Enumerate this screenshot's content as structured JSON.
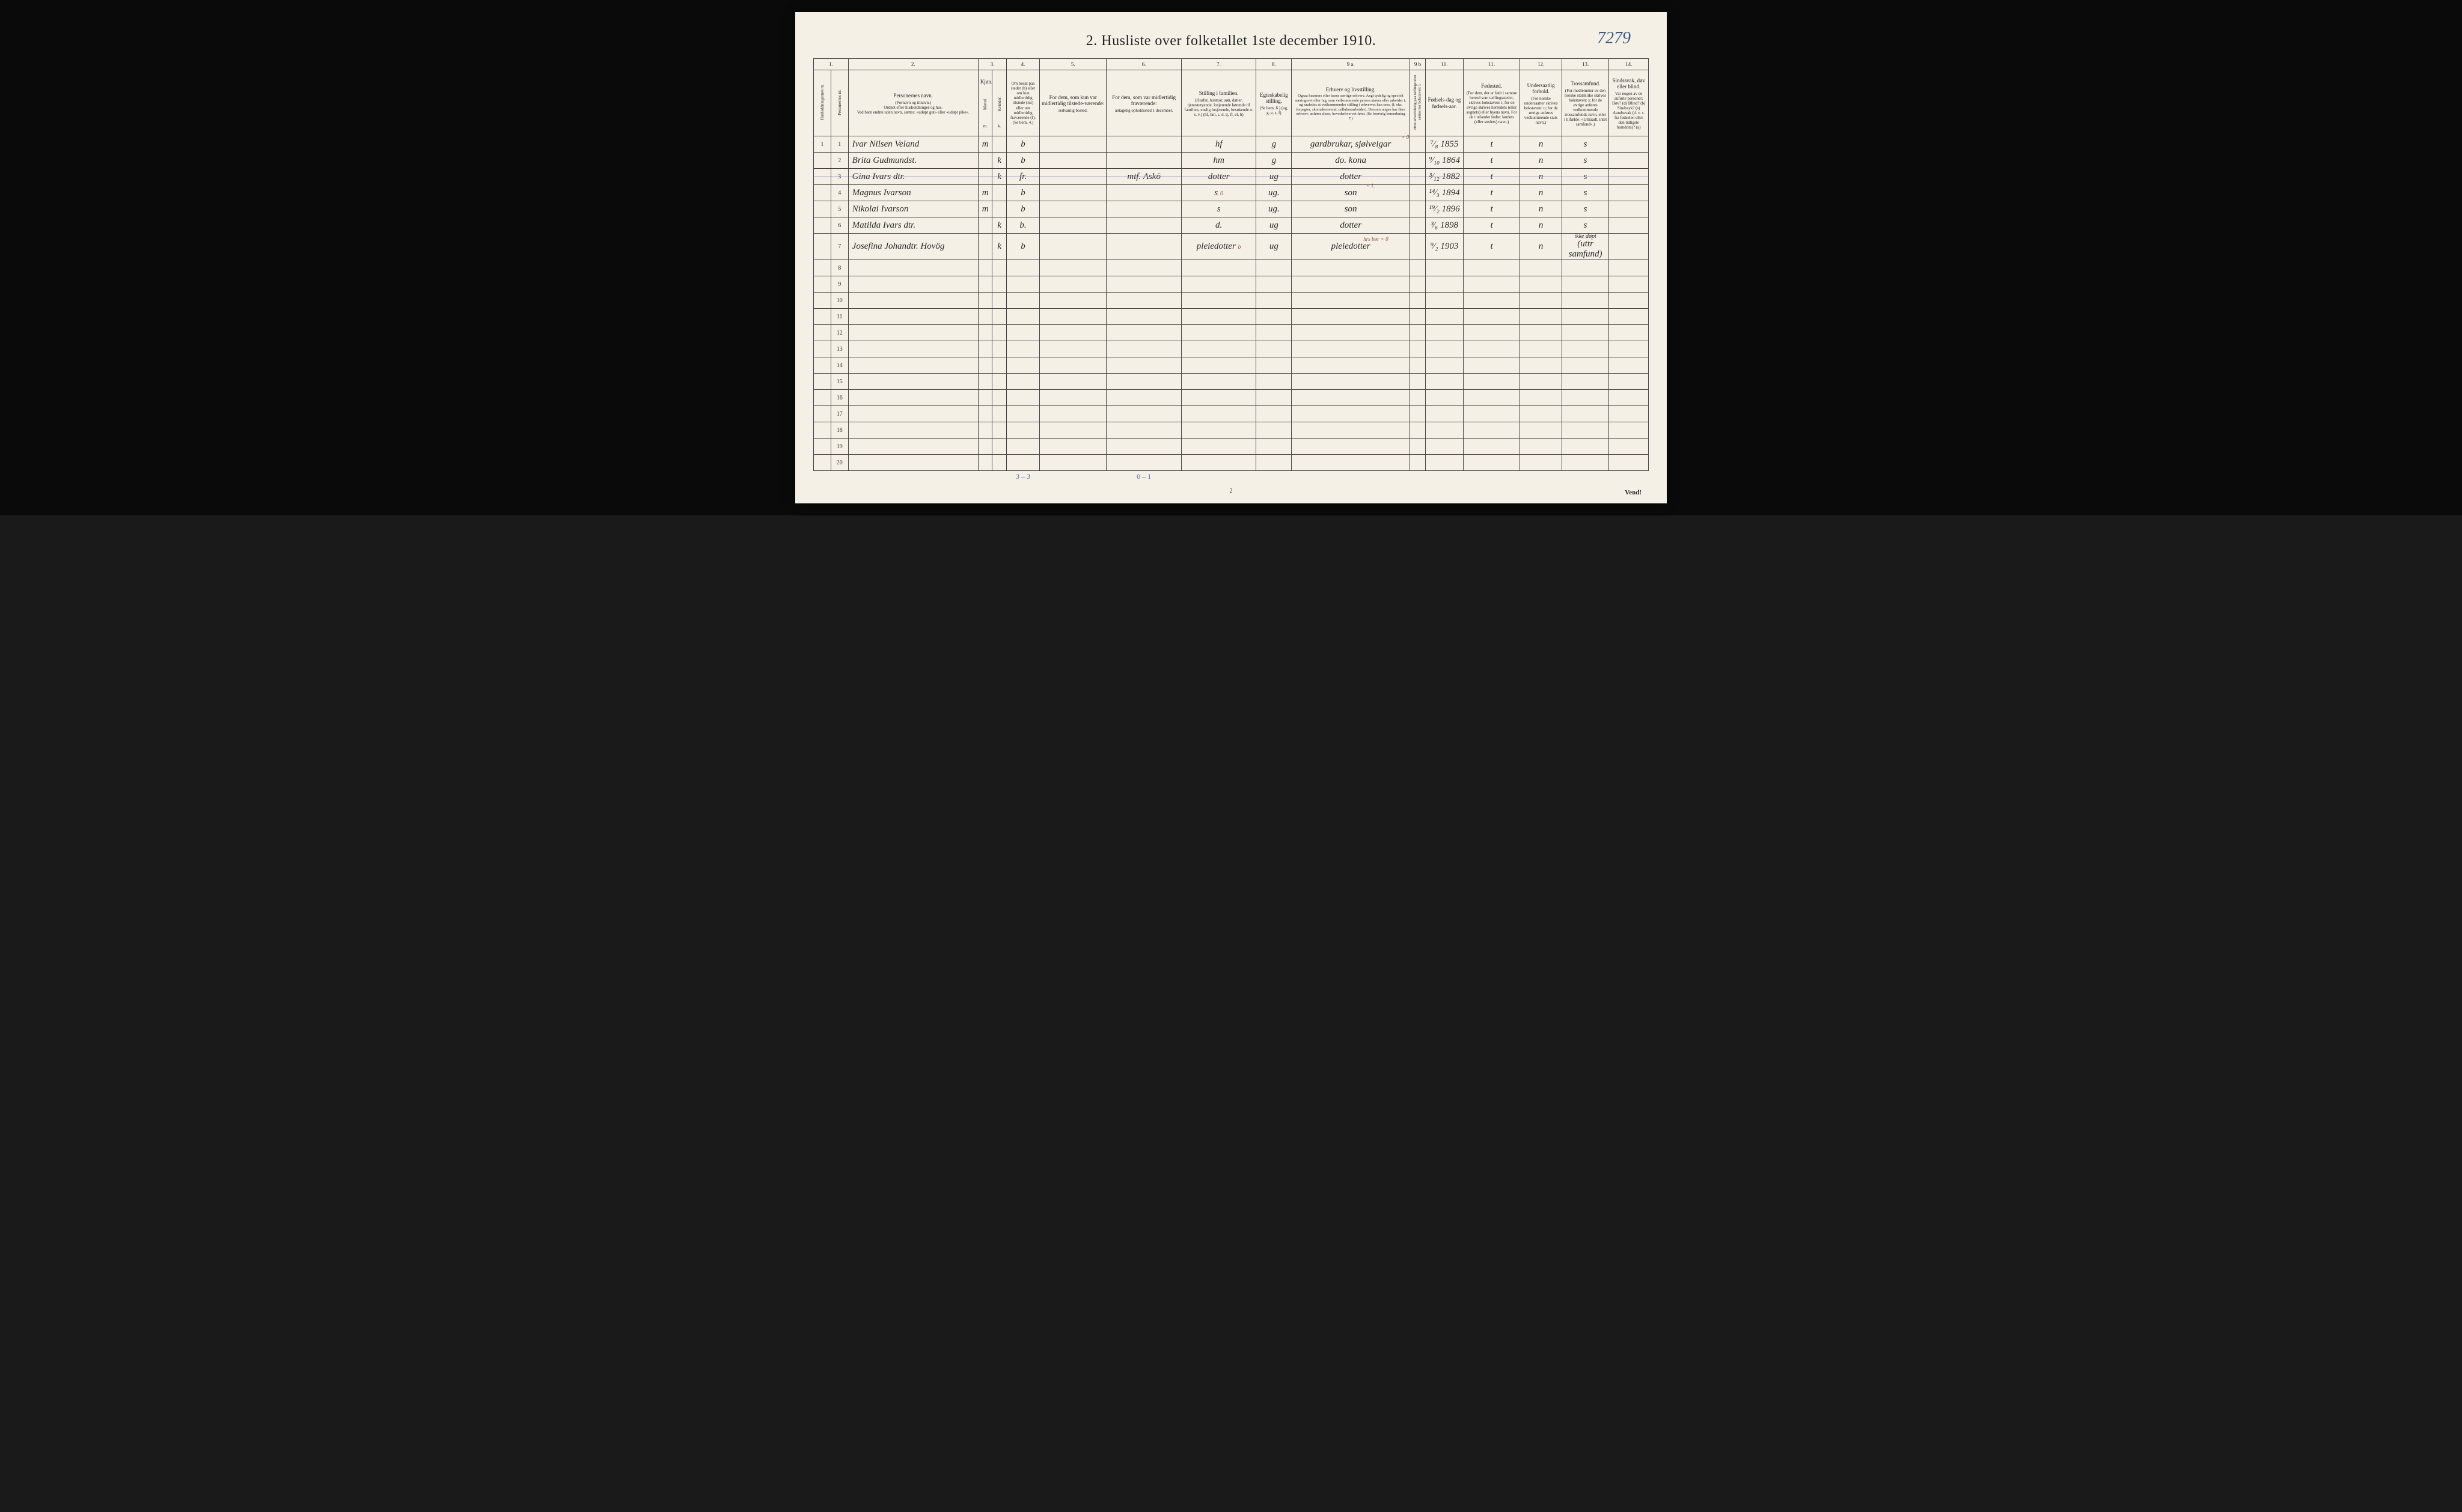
{
  "page_number_handwritten": "7279",
  "title": "2.  Husliste over folketallet 1ste december 1910.",
  "page_number_bottom": "2",
  "vend_label": "Vend!",
  "column_numbers": [
    "1.",
    "2.",
    "3.",
    "4.",
    "5.",
    "6.",
    "7.",
    "8.",
    "9 a.",
    "9 b",
    "10.",
    "11.",
    "12.",
    "13.",
    "14."
  ],
  "headers": {
    "col1a": "Husholdningernes nr.",
    "col1b": "Personernes nr.",
    "col2_main": "Personernes navn.",
    "col2_sub1": "(Fornavn og tilnavn.)",
    "col2_sub2": "Ordnet efter husholdninger og hus.",
    "col2_sub3": "Ved barn endnu uden navn, sættes: «udøpt gut» eller «udøpt pike».",
    "col3_main": "Kjøn.",
    "col3a": "Mænd.",
    "col3b": "Kvinder.",
    "col3_foot": "m.  k.",
    "col4_main": "Om bosat paa stedet (b) eller om kun midlertidig tilstede (mt) eller om midlertidig fraværende (f). (Se bem. 4.)",
    "col5_main": "For dem, som kun var midlertidig tilstede-værende:",
    "col5_sub": "sedvanlig bosted.",
    "col6_main": "For dem, som var midlertidig fraværende:",
    "col6_sub": "antagelig opholdssted 1 december.",
    "col7_main": "Stilling i familien.",
    "col7_sub": "(Husfar, husmor, søn, datter, tjenestetyende, losjerende hørende til familien, enslig losjerende, besøkende o. s. v.) (hf, hm, s, d, tj, fl, el, b)",
    "col8_main": "Egteskabelig stilling.",
    "col8_sub": "(Se bem. 6.) (ug, g, e, s, f)",
    "col9a_main": "Erhverv og livsstilling.",
    "col9a_sub": "Ogsaa husmors eller barns særlige erhverv. Angi tydelig og specielt næringsvei eller fag, som vedkommende person utøver eller arbeider i, og saaledes at vedkommendes stilling i erhvervet kan sees, (f. eks. forpagter, skomakersvend, cellulosearbeider). Dersom nogen har flere erhverv, anføres disse, hovederhvervet først. (Se forøvrig bemerkning 7.)",
    "col9b_main": "Hvis arbeidsledig paa tællingstiden sættes her bokstaven: l.",
    "col10_main": "Fødsels-dag og fødsels-aar.",
    "col11_main": "Fødested.",
    "col11_sub": "(For dem, der er født i samme herred som tællingsstedet, skrives bokstaven: t; for de øvrige skrives herredets (eller sognets) eller byens navn. For de i utlandet fødte: landets (eller stedets) navn.)",
    "col12_main": "Undersaatlig forhold.",
    "col12_sub": "(For norske undersaatter skrives bokstaven: n; for de øvrige anføres vedkommende stats navn.)",
    "col13_main": "Trossamfund.",
    "col13_sub": "(For medlemmer av den norske statskirke skrives bokstaven: s; for de øvrige anføres vedkommende trossamfunds navn, eller i tilfælde: «Uttraadt, intet samfund».)",
    "col14_main": "Sindssvak, døv eller blind.",
    "col14_sub": "Var nogen av de anførte personer: Døv? (d) Blind? (b) Sindssyk? (s) Aandssvak (d. v. s. fra fødselen eller den tidligste barndom)? (a)"
  },
  "rows": [
    {
      "household": "1",
      "person": "1",
      "name": "Ivar Nilsen Veland",
      "m": "m",
      "k": "",
      "b": "b",
      "col5": "",
      "col6": "",
      "col7": "hf",
      "col8": "g",
      "col9a": "gardbrukar, sjølveigar",
      "col9a_annot": "× 0",
      "col9b": "",
      "col10": "⁷⁄₈ 1855",
      "col11": "t",
      "col12": "n",
      "col13": "s",
      "col14": ""
    },
    {
      "household": "",
      "person": "2",
      "name": "Brita Gudmundst.",
      "m": "",
      "k": "k",
      "b": "b",
      "col5": "",
      "col6": "",
      "col7": "hm",
      "col8": "g",
      "col9a": "do. kona",
      "col9b": "",
      "col10": "⁹⁄₁₀ 1864",
      "col11": "t",
      "col12": "n",
      "col13": "s",
      "col14": ""
    },
    {
      "household": "",
      "person": "3",
      "name": "Gina Ivars dtr.",
      "m": "",
      "k": "k",
      "b": "fr.",
      "col5": "",
      "col6": "mtf. Askö",
      "col7": "dotter",
      "col8": "ug",
      "col9a": "dotter",
      "col9b": "",
      "col10": "³⁄₁₂ 1882",
      "col11": "t",
      "col12": "n",
      "col13": "s",
      "col14": "",
      "struck": true
    },
    {
      "household": "",
      "person": "4",
      "name": "Magnus Ivarson",
      "m": "m",
      "k": "",
      "b": "b",
      "col5": "",
      "col6": "",
      "col7": "s",
      "col7_annot": "0",
      "col8": "ug.",
      "col9a": "son",
      "col9a_annot": "× 1.",
      "col9b": "",
      "col10": "¹⁴⁄₃ 1894",
      "col11": "t",
      "col12": "n",
      "col13": "s",
      "col14": ""
    },
    {
      "household": "",
      "person": "5",
      "name": "Nikolai Ivarson",
      "m": "m",
      "k": "",
      "b": "b",
      "col5": "",
      "col6": "",
      "col7": "s",
      "col8": "ug.",
      "col9a": "son",
      "col9b": "",
      "col10": "¹⁹⁄₂ 1896",
      "col11": "t",
      "col12": "n",
      "col13": "s",
      "col14": ""
    },
    {
      "household": "",
      "person": "6",
      "name": "Matilda Ivars dtr.",
      "m": "",
      "k": "k",
      "b": "b.",
      "col5": "",
      "col6": "",
      "col7": "d.",
      "col8": "ug",
      "col9a": "dotter",
      "col9b": "",
      "col10": "³⁄₆ 1898",
      "col11": "t",
      "col12": "n",
      "col13": "s",
      "col14": ""
    },
    {
      "household": "",
      "person": "7",
      "name": "Josefina Johandtr. Hovög",
      "m": "",
      "k": "k",
      "b": "b",
      "col5": "",
      "col6": "",
      "col7": "pleiedotter",
      "col7_annot": "b",
      "col8": "ug",
      "col9a": "pleiedotter",
      "col9a_annot": "hrs bør × 0",
      "col9b": "",
      "col10": "⁹⁄₂ 1903",
      "col11": "t",
      "col12": "n",
      "col13": "(uttr samfund)",
      "col13_top": "ikke døpt",
      "col14": ""
    }
  ],
  "empty_rows": [
    8,
    9,
    10,
    11,
    12,
    13,
    14,
    15,
    16,
    17,
    18,
    19,
    20
  ],
  "footer_totals": {
    "col4": "3 – 3",
    "col6": "0 – 1"
  },
  "colors": {
    "page_bg": "#f5f0e6",
    "border": "#444",
    "handwriting": "#2a2a2a",
    "blue_pencil": "#5a6aa8",
    "red_ink": "#c0392b",
    "page_number": "#3a5a8a"
  },
  "column_widths_pct": [
    2.2,
    2.2,
    16.5,
    1.8,
    1.8,
    4.2,
    8.5,
    9.5,
    9.5,
    4.5,
    15.0,
    2.0,
    4.8,
    7.2,
    5.3,
    6.0,
    5.0
  ]
}
